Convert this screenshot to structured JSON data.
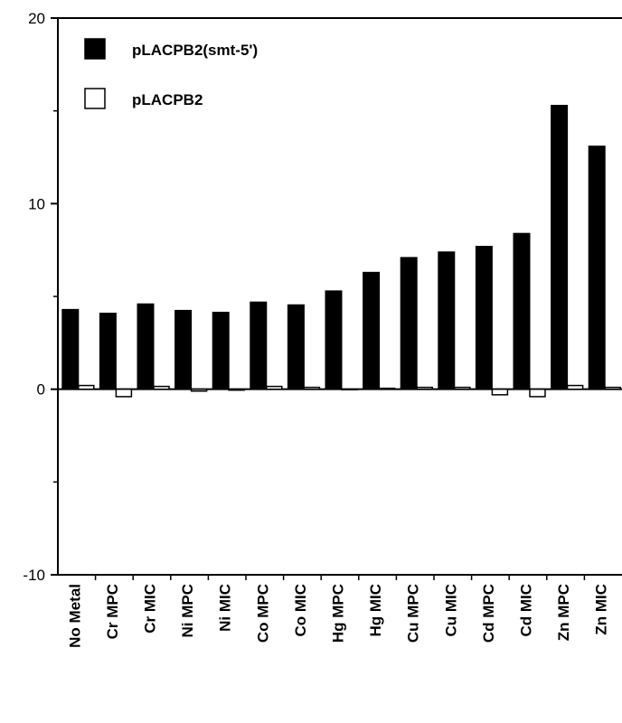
{
  "chart_data": {
    "type": "bar",
    "title": "",
    "xlabel": "",
    "ylabel": "",
    "ylim": [
      -10,
      20
    ],
    "yticks": [
      -10,
      0,
      10,
      20
    ],
    "grid": false,
    "legend_position": "top-left",
    "categories": [
      "No Metal",
      "Cr MPC",
      "Cr MIC",
      "Ni MPC",
      "Ni MIC",
      "Co MPC",
      "Co MIC",
      "Hg MPC",
      "Hg MIC",
      "Cu MPC",
      "Cu MIC",
      "Cd MPC",
      "Cd MIC",
      "Zn MPC",
      "Zn MIC"
    ],
    "series": [
      {
        "name": "pLACPB2(smt-5')",
        "color": "#000000",
        "fill": "solid",
        "values": [
          4.3,
          4.1,
          4.6,
          4.25,
          4.15,
          4.7,
          4.55,
          5.3,
          6.3,
          7.1,
          7.4,
          7.7,
          8.4,
          15.3,
          13.1
        ]
      },
      {
        "name": "pLACPB2",
        "color": "#ffffff",
        "fill": "hollow",
        "values": [
          0.2,
          -0.4,
          0.15,
          -0.1,
          -0.05,
          0.15,
          0.1,
          0.0,
          0.05,
          0.1,
          0.1,
          -0.3,
          -0.4,
          0.2,
          0.1
        ]
      }
    ]
  }
}
